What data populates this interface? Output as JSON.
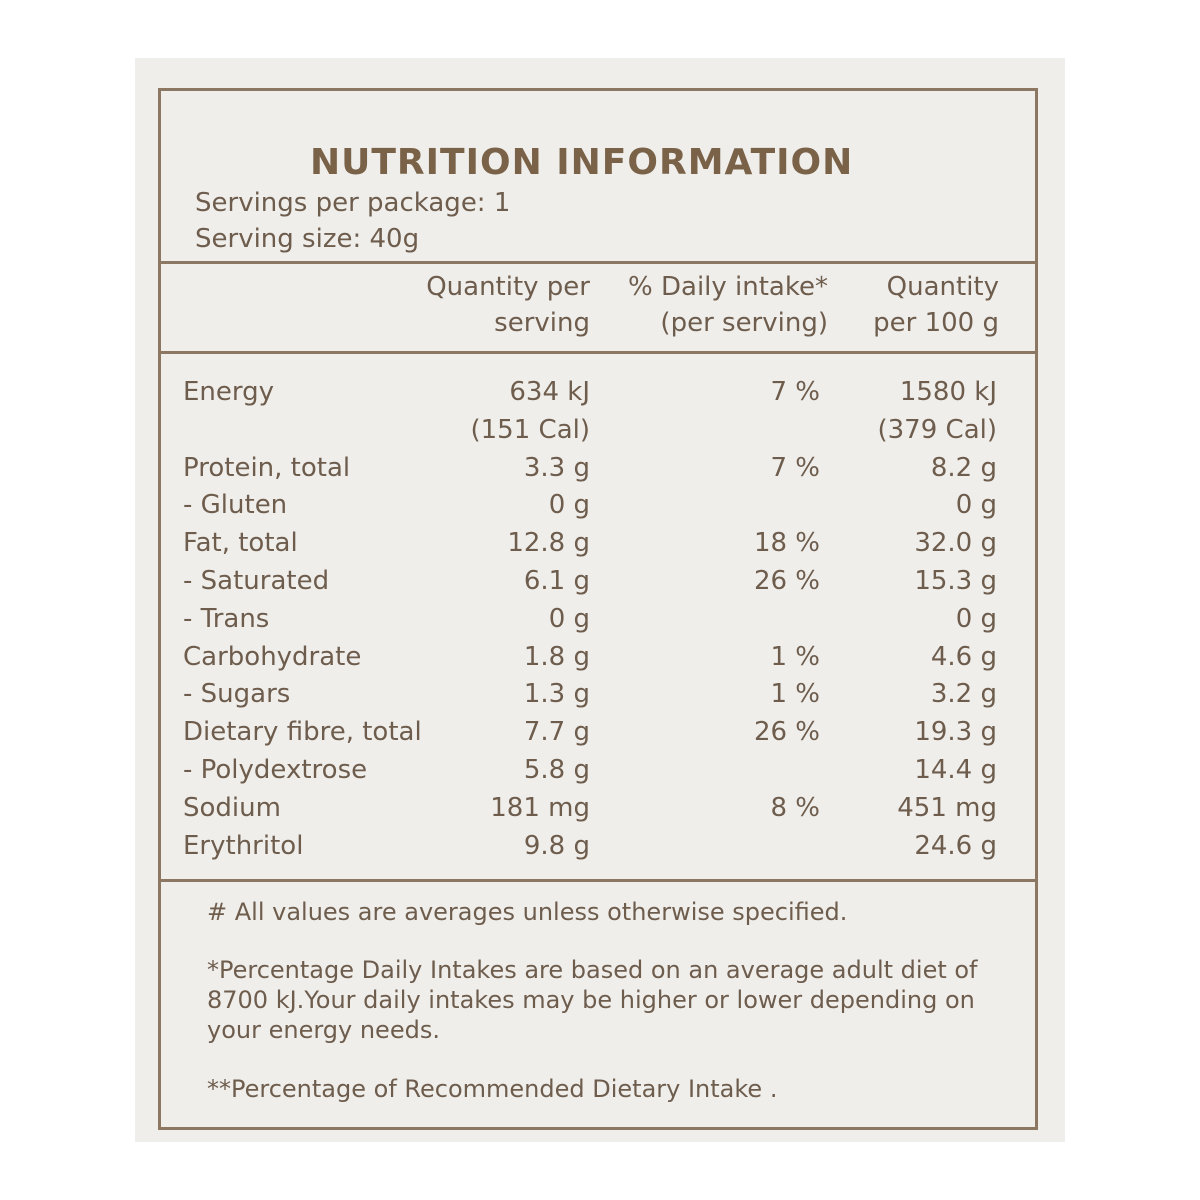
{
  "title": "NUTRITION INFORMATION",
  "servings": [
    "Servings per package: 1",
    "Serving size: 40g"
  ],
  "table": {
    "headers": [
      [
        "Quantity per",
        "serving"
      ],
      [
        "% Daily intake*",
        "(per serving)"
      ],
      [
        "Quantity",
        "per 100 g"
      ]
    ],
    "rows": [
      [
        "Energy",
        "634 kJ",
        "7 %",
        "1580 kJ"
      ],
      [
        null,
        "(151 Cal)",
        null,
        "(379 Cal)"
      ],
      [
        "Protein, total",
        "3.3 g",
        "7 %",
        "8.2 g"
      ],
      [
        "- Gluten",
        "0 g",
        null,
        "0 g"
      ],
      [
        "Fat, total",
        "12.8 g",
        "18 %",
        "32.0 g"
      ],
      [
        "- Saturated",
        "6.1 g",
        "26 %",
        "15.3 g"
      ],
      [
        "- Trans",
        "0 g",
        null,
        "0 g"
      ],
      [
        "Carbohydrate",
        "1.8 g",
        "1 %",
        "4.6 g"
      ],
      [
        "- Sugars",
        "1.3 g",
        "1 %",
        "3.2 g"
      ],
      [
        "Dietary fibre, total",
        "7.7 g",
        "26 %",
        "19.3 g"
      ],
      [
        "- Polydextrose",
        "5.8 g",
        null,
        "14.4 g"
      ],
      [
        "Sodium",
        "181 mg",
        "8 %",
        "451 mg"
      ],
      [
        "Erythritol",
        "9.8 g",
        null,
        "24.6 g"
      ]
    ]
  },
  "notes": [
    [
      "# All values are averages unless otherwise specified."
    ],
    [
      "*Percentage Daily Intakes are based on an average adult diet of",
      "8700 kJ.Your daily intakes may be higher or lower depending on",
      "your energy needs."
    ],
    [
      "**Percentage of Recommended Dietary Intake ."
    ]
  ]
}
